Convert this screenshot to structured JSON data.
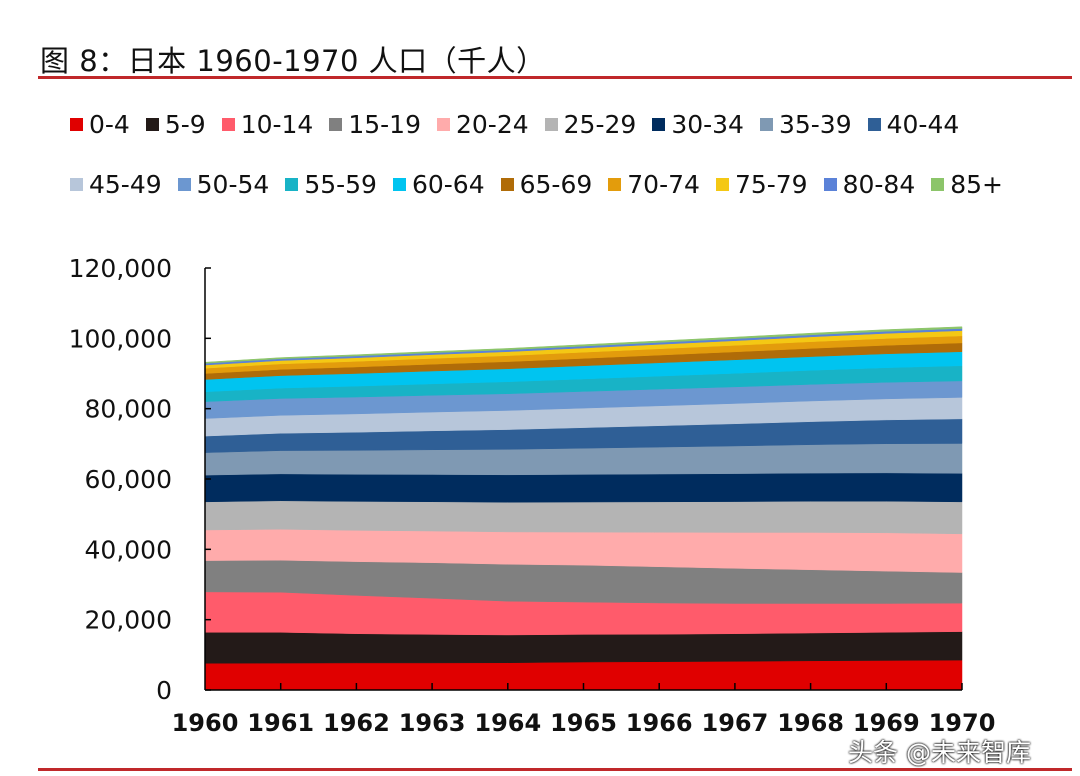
{
  "title": "图 8：日本 1960-1970 人口（千人）",
  "watermark": "头条 @未来智库",
  "chart_data": {
    "type": "area",
    "stacked": true,
    "title": "图 8：日本 1960-1970 人口（千人）",
    "xlabel": "",
    "ylabel": "",
    "x": [
      "1960",
      "1961",
      "1962",
      "1963",
      "1964",
      "1965",
      "1966",
      "1967",
      "1968",
      "1969",
      "1970"
    ],
    "ylim": [
      0,
      120000
    ],
    "yticks": [
      "0",
      "20,000",
      "40,000",
      "60,000",
      "80,000",
      "100,000",
      "120,000"
    ],
    "grid": false,
    "legend_position": "top",
    "series": [
      {
        "name": "0-4",
        "color": "#e00000",
        "values": [
          7600,
          7650,
          7700,
          7700,
          7750,
          7950,
          8050,
          8150,
          8300,
          8400,
          8500
        ]
      },
      {
        "name": "5-9",
        "color": "#231a18",
        "values": [
          8800,
          8750,
          8300,
          8100,
          7900,
          7850,
          7800,
          7850,
          7900,
          8000,
          8100
        ]
      },
      {
        "name": "10-14",
        "color": "#ff5b6b",
        "values": [
          11500,
          11400,
          10900,
          10300,
          9600,
          9200,
          8900,
          8600,
          8400,
          8200,
          8100
        ]
      },
      {
        "name": "15-19",
        "color": "#808080",
        "values": [
          8900,
          9100,
          9600,
          10100,
          10500,
          10500,
          10300,
          10000,
          9600,
          9200,
          8700
        ]
      },
      {
        "name": "20-24",
        "color": "#ffabab",
        "values": [
          8700,
          8800,
          8900,
          9000,
          9200,
          9400,
          9800,
          10200,
          10600,
          10900,
          11000
        ]
      },
      {
        "name": "25-29",
        "color": "#b4b4b4",
        "values": [
          8000,
          8110,
          8220,
          8330,
          8440,
          8550,
          8660,
          8770,
          8880,
          8990,
          9100
        ]
      },
      {
        "name": "30-34",
        "color": "#002c5e",
        "values": [
          7600,
          7650,
          7700,
          7750,
          7800,
          7850,
          7900,
          7950,
          8000,
          8050,
          8100
        ]
      },
      {
        "name": "35-39",
        "color": "#7f99b3",
        "values": [
          6400,
          6610,
          6820,
          7030,
          7240,
          7450,
          7660,
          7870,
          8080,
          8290,
          8500
        ]
      },
      {
        "name": "40-44",
        "color": "#2f5f96",
        "values": [
          4700,
          4930,
          5160,
          5390,
          5620,
          5850,
          6080,
          6310,
          6540,
          6770,
          7000
        ]
      },
      {
        "name": "45-49",
        "color": "#b7c6da",
        "values": [
          5000,
          5110,
          5220,
          5330,
          5440,
          5550,
          5660,
          5770,
          5880,
          5990,
          6100
        ]
      },
      {
        "name": "50-54",
        "color": "#6c97d0",
        "values": [
          4800,
          4790,
          4780,
          4770,
          4760,
          4750,
          4740,
          4730,
          4720,
          4710,
          4700
        ]
      },
      {
        "name": "55-59",
        "color": "#18b3c6",
        "values": [
          2800,
          2950,
          3100,
          3250,
          3400,
          3550,
          3700,
          3850,
          4000,
          4150,
          4300
        ]
      },
      {
        "name": "60-64",
        "color": "#00c4f0",
        "values": [
          3500,
          3550,
          3600,
          3650,
          3700,
          3750,
          3800,
          3850,
          3900,
          3950,
          4000
        ]
      },
      {
        "name": "65-69",
        "color": "#b06c08",
        "values": [
          1700,
          1780,
          1860,
          1940,
          2020,
          2100,
          2180,
          2260,
          2340,
          2420,
          2500
        ]
      },
      {
        "name": "70-74",
        "color": "#e39c0c",
        "values": [
          1500,
          1550,
          1600,
          1650,
          1700,
          1750,
          1800,
          1850,
          1900,
          1950,
          2000
        ]
      },
      {
        "name": "75-79",
        "color": "#f4c814",
        "values": [
          900,
          960,
          1020,
          1080,
          1140,
          1200,
          1260,
          1320,
          1380,
          1440,
          1500
        ]
      },
      {
        "name": "80-84",
        "color": "#5b82d8",
        "values": [
          500,
          510,
          520,
          530,
          540,
          550,
          560,
          570,
          580,
          590,
          600
        ]
      },
      {
        "name": "85+",
        "color": "#8cc56a",
        "values": [
          300,
          320,
          340,
          360,
          380,
          400,
          420,
          440,
          460,
          480,
          500
        ]
      }
    ]
  }
}
